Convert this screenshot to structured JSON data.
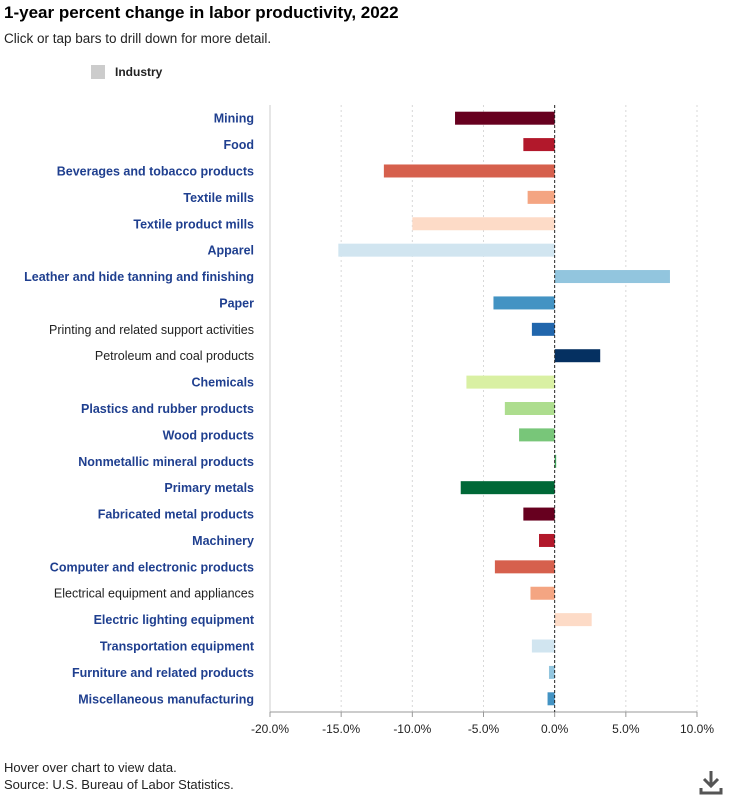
{
  "title": "1-year percent change in labor productivity, 2022",
  "subtitle": "Click or tap bars to drill down for more detail.",
  "legend": {
    "label": "Industry",
    "swatch_color": "#cccccc"
  },
  "footer": {
    "hover_note": "Hover over chart to view data.",
    "source": "Source: U.S. Bureau of Labor Statistics."
  },
  "download_icon": "download-icon",
  "chart_data": {
    "type": "bar",
    "orientation": "horizontal",
    "title": "1-year percent change in labor productivity, 2022",
    "xlabel": "",
    "ylabel": "",
    "xlim": [
      -20,
      10
    ],
    "xticks": [
      -20,
      -15,
      -10,
      -5,
      0,
      5,
      10
    ],
    "xtick_labels": [
      "-20.0%",
      "-15.0%",
      "-10.0%",
      "-5.0%",
      "0.0%",
      "5.0%",
      "10.0%"
    ],
    "grid": true,
    "categories": [
      "Mining",
      "Food",
      "Beverages and tobacco products",
      "Textile mills",
      "Textile product mills",
      "Apparel",
      "Leather and hide tanning and finishing",
      "Paper",
      "Printing and related support activities",
      "Petroleum and coal products",
      "Chemicals",
      "Plastics and rubber products",
      "Wood products",
      "Nonmetallic mineral products",
      "Primary metals",
      "Fabricated metal products",
      "Machinery",
      "Computer and electronic products",
      "Electrical equipment and appliances",
      "Electric lighting equipment",
      "Transportation equipment",
      "Furniture and related products",
      "Miscellaneous manufacturing"
    ],
    "values": [
      -7.0,
      -2.2,
      -12.0,
      -1.9,
      -10.0,
      -15.2,
      8.1,
      -4.3,
      -1.6,
      3.2,
      -6.2,
      -3.5,
      -2.5,
      0.1,
      -6.6,
      -2.2,
      -1.1,
      -4.2,
      -1.7,
      2.6,
      -1.6,
      -0.4,
      -0.5
    ],
    "drilldown": [
      true,
      true,
      true,
      true,
      true,
      true,
      true,
      true,
      false,
      false,
      true,
      true,
      true,
      true,
      true,
      true,
      true,
      true,
      false,
      true,
      true,
      true,
      true
    ],
    "colors": [
      "#67001f",
      "#b2182b",
      "#d6604d",
      "#f4a582",
      "#fddbc7",
      "#d1e5f0",
      "#92c5de",
      "#4393c3",
      "#2166ac",
      "#053061",
      "#d9f0a3",
      "#addd8e",
      "#78c679",
      "#41ab5d",
      "#006837",
      "#67001f",
      "#b2182b",
      "#d6604d",
      "#f4a582",
      "#fddbc7",
      "#d1e5f0",
      "#92c5de",
      "#4393c3"
    ]
  }
}
